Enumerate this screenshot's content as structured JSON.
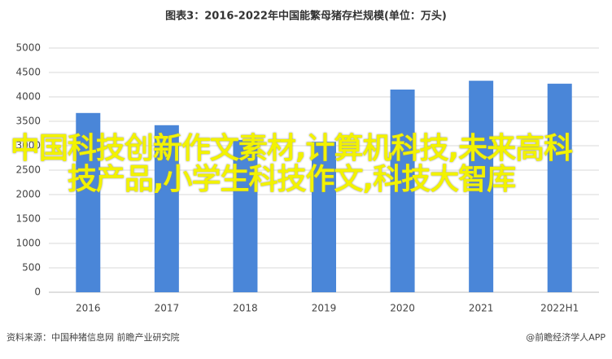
{
  "chart_data": {
    "type": "bar",
    "title": "图表3：2016-2022年中国能繁母猪存栏规模(单位：万头)",
    "categories": [
      "2016",
      "2017",
      "2018",
      "2019",
      "2020",
      "2021",
      "2022H1"
    ],
    "values": [
      3670,
      3420,
      3120,
      3080,
      4150,
      4330,
      4270
    ],
    "color": "#4a86d8",
    "ylim": [
      0,
      5000
    ],
    "yticks": [
      0,
      500,
      1000,
      1500,
      2000,
      2500,
      3000,
      3500,
      4000,
      4500,
      5000
    ],
    "grid": true,
    "source": "资料来源：中国种猪信息网 前瞻产业研究院",
    "credit": "@前瞻经济学人APP"
  },
  "overlay_text": "中国科技创新作文素材,计算机科技,未来高科技产品,小学生科技作文,科技大智库"
}
